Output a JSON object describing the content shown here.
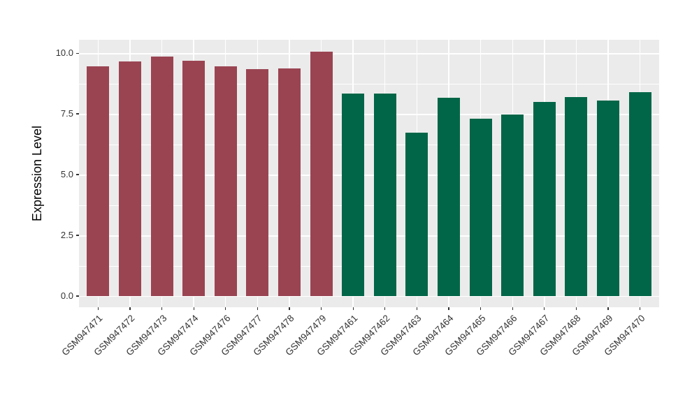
{
  "chart_data": {
    "type": "bar",
    "title": "",
    "xlabel": "",
    "ylabel": "Expression Level",
    "categories": [
      "GSM947471",
      "GSM947472",
      "GSM947473",
      "GSM947474",
      "GSM947476",
      "GSM947477",
      "GSM947478",
      "GSM947479",
      "GSM947461",
      "GSM947462",
      "GSM947463",
      "GSM947464",
      "GSM947465",
      "GSM947466",
      "GSM947467",
      "GSM947468",
      "GSM947469",
      "GSM947470"
    ],
    "values": [
      9.46,
      9.66,
      9.86,
      9.68,
      9.45,
      9.34,
      9.38,
      10.06,
      8.33,
      8.33,
      6.72,
      8.16,
      7.3,
      7.48,
      7.99,
      8.19,
      8.05,
      8.39
    ],
    "bar_colors": [
      "#9A4452",
      "#9A4452",
      "#9A4452",
      "#9A4452",
      "#9A4452",
      "#9A4452",
      "#9A4452",
      "#9A4452",
      "#006647",
      "#006647",
      "#006647",
      "#006647",
      "#006647",
      "#006647",
      "#006647",
      "#006647",
      "#006647",
      "#006647"
    ],
    "group_colors": {
      "group1": "#9A4452",
      "group2": "#006647"
    },
    "y_ticks": [
      0.0,
      2.5,
      5.0,
      7.5,
      10.0
    ],
    "y_tick_labels": [
      "0.0",
      "2.5",
      "5.0",
      "7.5",
      "10.0"
    ],
    "y_minor_ticks": [
      1.25,
      3.75,
      6.25,
      8.75
    ],
    "ylim": [
      0,
      10.55
    ],
    "layout": {
      "y_domain": [
        -0.46,
        10.55
      ],
      "bar_width_units": 0.7,
      "category_expand": 0.2,
      "grid": true,
      "legend": "none",
      "panel_bg": "#EBEBEB",
      "grid_color": "#FFFFFF",
      "tick_color": "#333333"
    }
  }
}
